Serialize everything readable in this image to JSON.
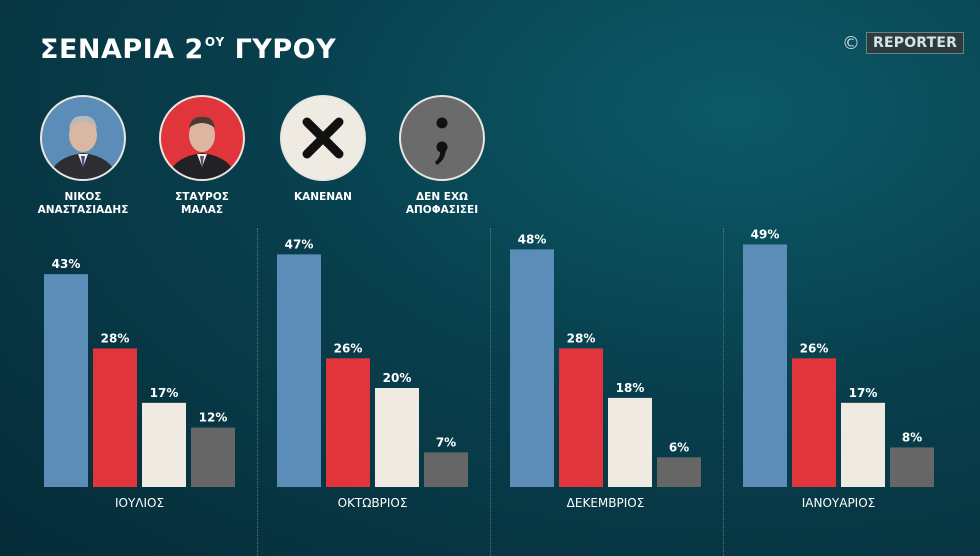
{
  "title": {
    "main": "ΣΕΝΑΡΙΑ 2",
    "sup": "ΟΥ",
    "rest": " ΓΥΡΟΥ"
  },
  "brand": {
    "copyright": "©",
    "name": "REPORTER"
  },
  "candidates": [
    {
      "label": "ΝΙΚΟΣ\nΑΝΑΣΤΑΣΙΑΔΗΣ",
      "color": "#5b8db8"
    },
    {
      "label": "ΣΤΑΥΡΟΣ\nΜΑΛΑΣ",
      "color": "#e0353a"
    },
    {
      "label": "ΚΑΝΕΝΑΝ",
      "color": "#f0ebe2",
      "symbol": "✕"
    },
    {
      "label": "ΔΕΝ ΕΧΩ\nΑΠΟΦΑΣΙΣΕΙ",
      "color": "#6b6b6b",
      "symbol": ";"
    }
  ],
  "chart_data": {
    "type": "bar",
    "categories": [
      "ΙΟΥΛΙΟΣ",
      "ΟΚΤΩΒΡΙΟΣ",
      "ΔΕΚΕΜΒΡΙΟΣ",
      "ΙΑΝΟΥΑΡΙΟΣ"
    ],
    "series": [
      {
        "name": "ΝΙΚΟΣ ΑΝΑΣΤΑΣΙΑΔΗΣ",
        "color": "#5b8db8",
        "values": [
          43,
          47,
          48,
          49
        ]
      },
      {
        "name": "ΣΤΑΥΡΟΣ ΜΑΛΑΣ",
        "color": "#e0353a",
        "values": [
          28,
          26,
          28,
          26
        ]
      },
      {
        "name": "ΚΑΝΕΝΑΝ",
        "color": "#f0ebe2",
        "values": [
          17,
          20,
          18,
          17
        ]
      },
      {
        "name": "ΔΕΝ ΕΧΩ ΑΠΟΦΑΣΙΣΕΙ",
        "color": "#666666",
        "values": [
          12,
          7,
          6,
          8
        ]
      }
    ],
    "value_suffix": "%",
    "ylim": [
      0,
      50
    ],
    "grid": false,
    "legend": "top-left"
  }
}
